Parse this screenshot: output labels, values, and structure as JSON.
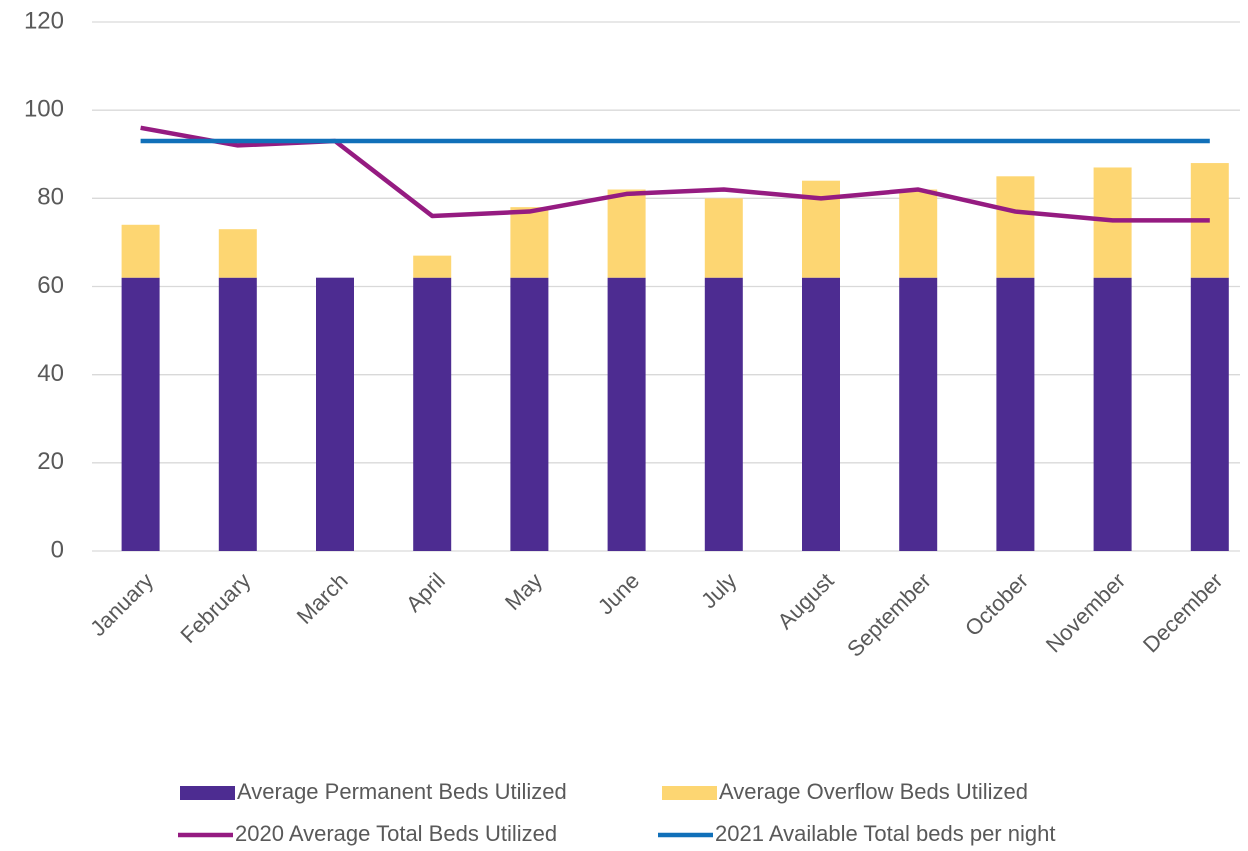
{
  "chart_data": {
    "type": "bar",
    "categories": [
      "January",
      "February",
      "March",
      "April",
      "May",
      "June",
      "July",
      "August",
      "September",
      "October",
      "November",
      "December"
    ],
    "series": [
      {
        "name": "Average Permanent Beds Utilized",
        "type": "bar",
        "color": "#4d2c91",
        "values": [
          62,
          62,
          62,
          62,
          62,
          62,
          62,
          62,
          62,
          62,
          62,
          62
        ]
      },
      {
        "name": "Average Overflow Beds Utilized",
        "type": "bar",
        "color": "#fdd672",
        "values": [
          12,
          11,
          0,
          5,
          16,
          20,
          18,
          22,
          20,
          23,
          25,
          26
        ]
      },
      {
        "name": "2020 Average Total Beds Utilized",
        "type": "line",
        "color": "#951b81",
        "values": [
          96,
          92,
          93,
          76,
          77,
          81,
          82,
          80,
          82,
          77,
          75,
          75
        ]
      },
      {
        "name": "2021 Available Total beds per night",
        "type": "line",
        "color": "#1170b9",
        "values": [
          93,
          93,
          93,
          93,
          93,
          93,
          93,
          93,
          93,
          93,
          93,
          93
        ]
      }
    ],
    "ylim": [
      0,
      120
    ],
    "yticks": [
      0,
      20,
      40,
      60,
      80,
      100,
      120
    ],
    "grid": true,
    "legend": "bottom"
  }
}
